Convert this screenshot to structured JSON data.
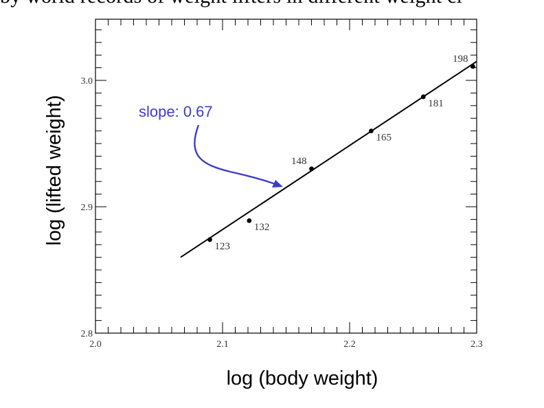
{
  "header": {
    "text": "by world records of weight lifters in different weight cl"
  },
  "chart_data": {
    "type": "scatter",
    "title": "",
    "xlabel": "log (body weight)",
    "ylabel": "log (lifted weight)",
    "xlim": [
      2.0,
      2.3
    ],
    "ylim": [
      2.8,
      3.05
    ],
    "xticks": [
      2.0,
      2.1,
      2.2,
      2.3
    ],
    "xtick_labels": [
      "2.0",
      "2.1",
      "2.2",
      "2.3"
    ],
    "yticks": [
      2.8,
      2.9,
      3.0
    ],
    "ytick_labels": [
      "2.8",
      "2.9",
      "3.0"
    ],
    "points": [
      {
        "label": "123",
        "x": 2.09,
        "y": 2.874
      },
      {
        "label": "132",
        "x": 2.121,
        "y": 2.889
      },
      {
        "label": "148",
        "x": 2.17,
        "y": 2.93
      },
      {
        "label": "165",
        "x": 2.217,
        "y": 2.96
      },
      {
        "label": "181",
        "x": 2.258,
        "y": 2.987
      },
      {
        "label": "198",
        "x": 2.297,
        "y": 3.011
      }
    ],
    "fit_line": {
      "x": [
        2.067,
        2.3
      ],
      "y": [
        2.86,
        3.015
      ]
    },
    "annotation": {
      "text": "slope: 0.67"
    },
    "grid": false
  },
  "colors": {
    "annotation": "#3b3bd0",
    "ink": "#000000"
  }
}
